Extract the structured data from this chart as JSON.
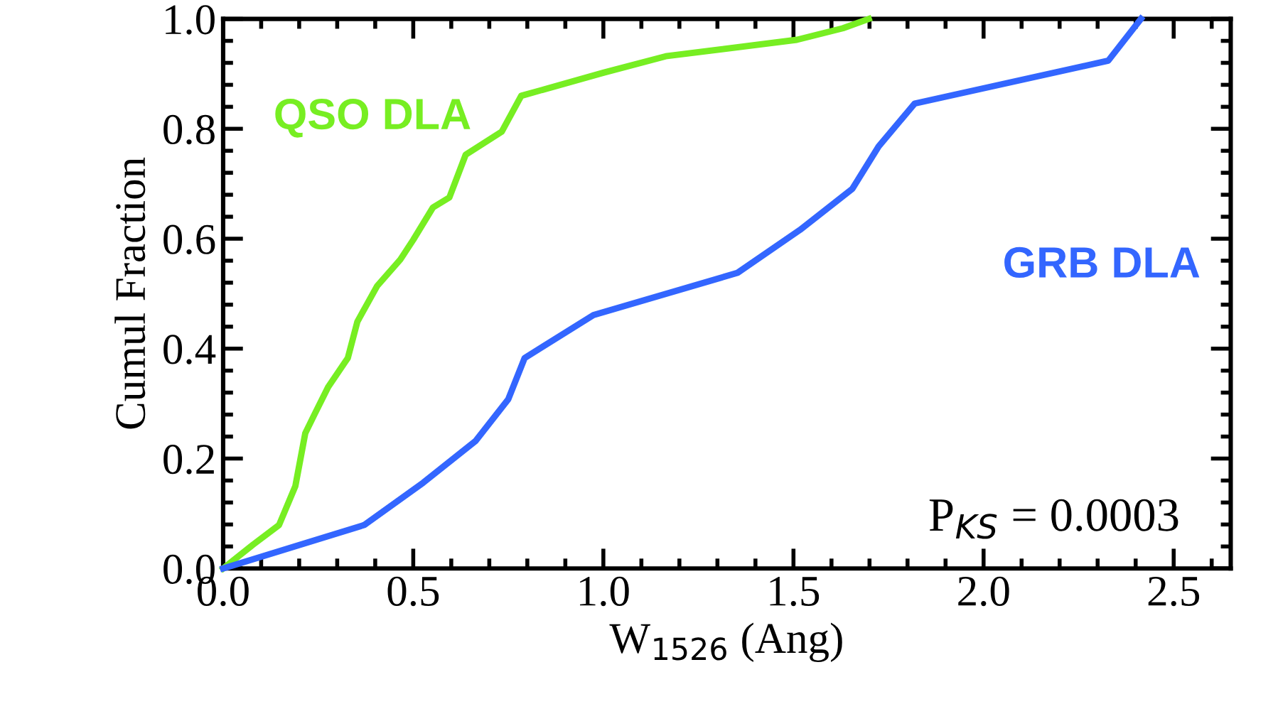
{
  "chart_data": {
    "type": "line",
    "xlabel": "W$_{1526}$ (Ang)",
    "ylabel": "Cumul Fraction",
    "xlim": [
      0,
      2.65
    ],
    "ylim": [
      0,
      1.0
    ],
    "xticks": [
      {
        "value": 0,
        "label": "0.0"
      },
      0.5,
      {
        "value": 1,
        "label": "1.0"
      },
      1.5,
      {
        "value": 2,
        "label": "2.0"
      },
      2.5
    ],
    "yticks": [
      {
        "value": 0,
        "label": "0.0"
      },
      0.2,
      0.4,
      0.6,
      0.8,
      {
        "value": 1,
        "label": "1.0"
      }
    ],
    "grid": false,
    "legend": false,
    "marker": "none",
    "line_style": "solid",
    "annotations": [
      "P$_{KS}$ = 0.0003"
    ],
    "series": [
      {
        "name": "QSO DLA",
        "color": "#77ee22",
        "x": [
          0,
          0.078,
          0.147,
          0.19,
          0.216,
          0.24,
          0.276,
          0.328,
          0.353,
          0.405,
          0.466,
          0.5,
          0.552,
          0.595,
          0.638,
          0.733,
          0.784,
          1.0,
          1.164,
          1.509,
          1.63,
          1.698
        ],
        "values": [
          0,
          0.043,
          0.079,
          0.15,
          0.246,
          0.28,
          0.33,
          0.383,
          0.449,
          0.514,
          0.562,
          0.598,
          0.657,
          0.675,
          0.753,
          0.795,
          0.86,
          0.902,
          0.932,
          0.962,
          0.983,
          1.0
        ]
      },
      {
        "name": "GRB DLA",
        "color": "#3366ff",
        "x": [
          0,
          0.371,
          0.526,
          0.664,
          0.75,
          0.793,
          0.974,
          1.353,
          1.517,
          1.655,
          1.724,
          1.819,
          2.328,
          2.414
        ],
        "values": [
          0,
          0.079,
          0.156,
          0.232,
          0.308,
          0.383,
          0.461,
          0.538,
          0.616,
          0.691,
          0.768,
          0.846,
          0.924,
          1.0
        ]
      }
    ]
  }
}
